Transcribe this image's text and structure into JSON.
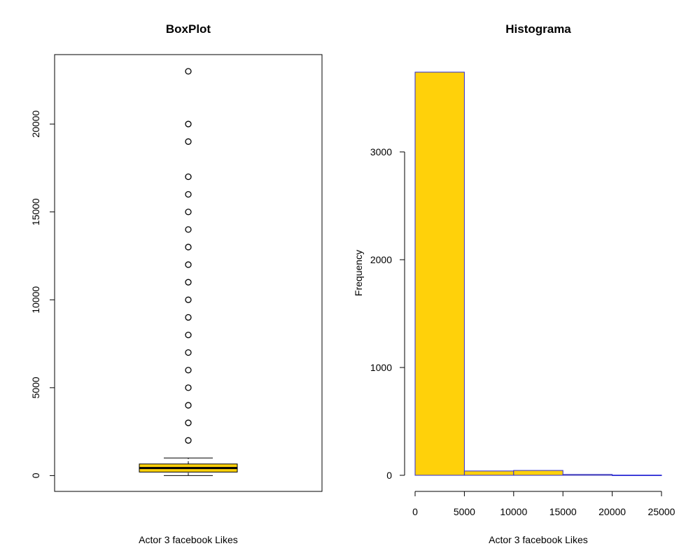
{
  "colors": {
    "box_fill": "#FFD10A",
    "hist_fill": "#FFD10A",
    "hist_border": "#2B2BD6",
    "axis": "#000000"
  },
  "chart_data": [
    {
      "type": "box",
      "title": "BoxPlot",
      "xlabel": "Actor 3 facebook Likes",
      "ylabel": "",
      "ylim": [
        -900,
        23950
      ],
      "yticks": [
        0,
        5000,
        10000,
        15000,
        20000
      ],
      "box": {
        "min": 0,
        "q1": 200,
        "median": 430,
        "q3": 660,
        "whisker_high": 1000
      },
      "outliers": [
        2000,
        3000,
        4000,
        5000,
        6000,
        7000,
        8000,
        9000,
        10000,
        11000,
        12000,
        13000,
        14000,
        15000,
        16000,
        17000,
        19000,
        20000,
        23000
      ],
      "fill_color": "#FFD10A"
    },
    {
      "type": "histogram",
      "title": "Histograma",
      "xlabel": "Actor 3 facebook Likes",
      "ylabel": "Frequency",
      "bins": [
        [
          0,
          5000
        ],
        [
          5000,
          10000
        ],
        [
          10000,
          15000
        ],
        [
          15000,
          20000
        ],
        [
          20000,
          25000
        ]
      ],
      "values": [
        3740,
        40,
        45,
        8,
        2
      ],
      "xticks": [
        0,
        5000,
        10000,
        15000,
        20000,
        25000
      ],
      "yticks": [
        0,
        1000,
        2000,
        3000
      ],
      "ylim": [
        0,
        3740
      ],
      "fill_color": "#FFD10A",
      "border_color": "#2B2BD6"
    }
  ]
}
